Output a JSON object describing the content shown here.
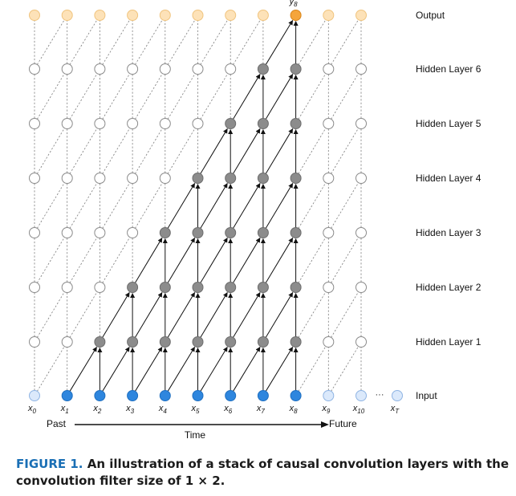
{
  "diagram": {
    "layer_labels": [
      "Output",
      "Hidden Layer 6",
      "Hidden Layer 5",
      "Hidden Layer 4",
      "Hidden Layer 3",
      "Hidden Layer 2",
      "Hidden Layer 1",
      "Input"
    ],
    "input_labels": [
      "x",
      "x",
      "x",
      "x",
      "x",
      "x",
      "x",
      "x",
      "x",
      "x",
      "x"
    ],
    "input_subscripts": [
      "0",
      "1",
      "2",
      "3",
      "4",
      "5",
      "6",
      "7",
      "8",
      "9",
      "10"
    ],
    "last_input_label": "x",
    "last_input_subscript": "T",
    "ellipsis": "···",
    "output_label": "y",
    "output_subscript": "8",
    "past_label": "Past",
    "future_label": "Future",
    "time_label": "Time",
    "colors": {
      "active_input": "#2e86de",
      "inactive_input": "#dbe9fb",
      "hidden_active": "#8c8c8c",
      "hidden_inactive": "#ffffff",
      "output_highlight": "#f5a53b",
      "output_inactive": "#fde2b8",
      "caption_label": "#1a6fb5"
    }
  },
  "caption": {
    "figure_label": "FIGURE 1.",
    "text": "An illustration of a stack of causal convolution layers with the convolution filter size of 1 × 2."
  }
}
